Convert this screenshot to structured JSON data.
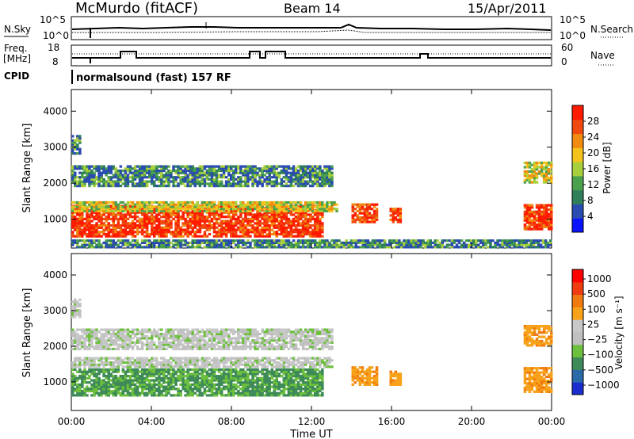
{
  "header": {
    "station": "McMurdo (fitACF)",
    "beam": "Beam 14",
    "date": "15/Apr/2011"
  },
  "top_panel": {
    "nsky_label": "N.Sky",
    "nsearch_label": "N.Search",
    "left_ticks": [
      "10^5",
      "10^0"
    ],
    "right_ticks": [
      "10^5",
      "10^0"
    ],
    "freq_label_1": "Freq.",
    "freq_label_2": "[MHz]",
    "freq_ticks": [
      "18",
      "8"
    ],
    "nave_label": "Nave",
    "nave_ticks": [
      "60",
      "0"
    ],
    "cpid_label": "CPID",
    "cpid_text": "normalsound (fast) 157 RF"
  },
  "colors": {
    "power_scale": [
      "#0a14ff",
      "#2a4cb0",
      "#2e7f5a",
      "#4ca24c",
      "#a8cf3c",
      "#f4c21c",
      "#f08a10",
      "#f04a10",
      "#ff1a00"
    ],
    "velocity_scale": [
      "#1a2ecf",
      "#2a6aa8",
      "#3e8a58",
      "#6cc03c",
      "#c0c0c0",
      "#c8c8c8",
      "#f7a21a",
      "#f07a10",
      "#f03a10",
      "#ff0000"
    ]
  },
  "chart_data": [
    {
      "type": "heatmap",
      "title": "Power",
      "xlabel": "",
      "ylabel": "Slant Range [km]",
      "x_ticks": [
        "00:00",
        "04:00",
        "08:00",
        "12:00",
        "16:00",
        "20:00",
        "00:00"
      ],
      "y_ticks": [
        1000,
        2000,
        3000,
        4000
      ],
      "xlim": [
        0,
        24
      ],
      "ylim": [
        200,
        4600
      ],
      "colorbar_label": "Power [dB]",
      "colorbar_ticks": [
        4,
        8,
        12,
        16,
        20,
        24,
        28
      ],
      "regions": [
        {
          "x0": 0.0,
          "x1": 12.5,
          "r0": 500,
          "r1": 1350,
          "level": "high"
        },
        {
          "x0": 0.0,
          "x1": 13.2,
          "r0": 1200,
          "r1": 1500,
          "level": "mid"
        },
        {
          "x0": 0.0,
          "x1": 13.0,
          "r0": 1900,
          "r1": 2500,
          "level": "low"
        },
        {
          "x0": 0.0,
          "x1": 0.4,
          "r0": 2800,
          "r1": 3300,
          "level": "low"
        },
        {
          "x0": 14.0,
          "x1": 15.2,
          "r0": 900,
          "r1": 1400,
          "level": "high"
        },
        {
          "x0": 15.9,
          "x1": 16.4,
          "r0": 900,
          "r1": 1300,
          "level": "high"
        },
        {
          "x0": 22.6,
          "x1": 24.0,
          "r0": 700,
          "r1": 1400,
          "level": "high"
        },
        {
          "x0": 22.6,
          "x1": 24.0,
          "r0": 2000,
          "r1": 2600,
          "level": "mid"
        },
        {
          "x0": 0.0,
          "x1": 24.0,
          "r0": 200,
          "r1": 400,
          "level": "low"
        }
      ]
    },
    {
      "type": "heatmap",
      "title": "Velocity",
      "xlabel": "Time UT",
      "ylabel": "Slant Range [km]",
      "x_ticks": [
        "00:00",
        "04:00",
        "08:00",
        "12:00",
        "16:00",
        "20:00",
        "00:00"
      ],
      "y_ticks": [
        1000,
        2000,
        3000,
        4000
      ],
      "xlim": [
        0,
        24
      ],
      "ylim": [
        200,
        4600
      ],
      "colorbar_label": "Velocity [m s⁻¹]",
      "colorbar_ticks": [
        "1000",
        "500",
        "100",
        "25",
        "−25",
        "−100",
        "−500",
        "−1000"
      ],
      "regions": [
        {
          "x0": 0.0,
          "x1": 12.5,
          "r0": 600,
          "r1": 1350,
          "level": "green"
        },
        {
          "x0": 0.0,
          "x1": 13.0,
          "r0": 1400,
          "r1": 1700,
          "level": "gray"
        },
        {
          "x0": 0.0,
          "x1": 13.0,
          "r0": 1900,
          "r1": 2500,
          "level": "gray"
        },
        {
          "x0": 0.0,
          "x1": 0.4,
          "r0": 2800,
          "r1": 3300,
          "level": "gray"
        },
        {
          "x0": 14.0,
          "x1": 15.2,
          "r0": 900,
          "r1": 1400,
          "level": "orange"
        },
        {
          "x0": 15.9,
          "x1": 16.4,
          "r0": 900,
          "r1": 1300,
          "level": "orange"
        },
        {
          "x0": 22.6,
          "x1": 24.0,
          "r0": 700,
          "r1": 1400,
          "level": "orange"
        },
        {
          "x0": 22.6,
          "x1": 24.0,
          "r0": 2000,
          "r1": 2600,
          "level": "orange"
        }
      ]
    }
  ]
}
